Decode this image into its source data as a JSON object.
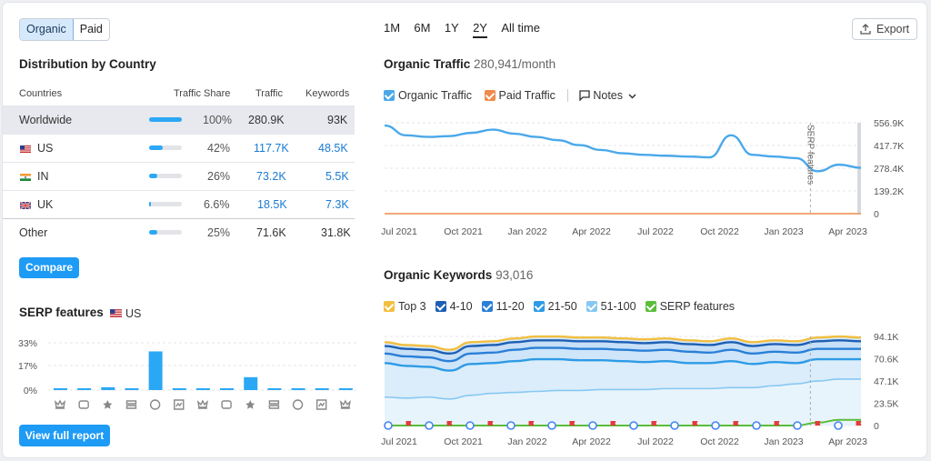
{
  "segment": {
    "organic": "Organic",
    "paid": "Paid"
  },
  "distribution": {
    "title": "Distribution by Country",
    "headers": {
      "countries": "Countries",
      "share": "Traffic Share",
      "traffic": "Traffic",
      "keywords": "Keywords"
    },
    "rows": [
      {
        "country": "Worldwide",
        "share": "100%",
        "share_value": 100,
        "traffic": "280.9K",
        "keywords": "93K"
      },
      {
        "country": "US",
        "share": "42%",
        "share_value": 42,
        "traffic": "117.7K",
        "keywords": "48.5K"
      },
      {
        "country": "IN",
        "share": "26%",
        "share_value": 26,
        "traffic": "73.2K",
        "keywords": "5.5K"
      },
      {
        "country": "UK",
        "share": "6.6%",
        "share_value": 6.6,
        "traffic": "18.5K",
        "keywords": "7.3K"
      },
      {
        "country": "Other",
        "share": "25%",
        "share_value": 25,
        "traffic": "71.6K",
        "keywords": "31.8K"
      }
    ],
    "compare_label": "Compare"
  },
  "serp": {
    "title": "SERP features",
    "country": "US",
    "y_ticks": [
      "33%",
      "17%",
      "0%"
    ],
    "view_report": "View full report",
    "icons": [
      "crown-icon",
      "link-icon",
      "star-icon",
      "layout-icon",
      "image-icon",
      "gallery-icon",
      "video-icon",
      "video-carousel-icon",
      "faq-icon",
      "location-icon",
      "graduation-icon",
      "news-icon",
      "twitter-icon"
    ]
  },
  "time_range": {
    "options": [
      "1M",
      "6M",
      "1Y",
      "2Y",
      "All time"
    ],
    "selected": "2Y"
  },
  "export_label": "Export",
  "traffic": {
    "title": "Organic Traffic",
    "value": "280,941/month",
    "legend": {
      "organic": "Organic Traffic",
      "paid": "Paid Traffic",
      "notes": "Notes"
    },
    "y_ticks": [
      "556.9K",
      "417.7K",
      "278.4K",
      "139.2K",
      "0"
    ],
    "x_ticks": [
      "Jul 2021",
      "Oct 2021",
      "Jan 2022",
      "Apr 2022",
      "Jul 2022",
      "Oct 2022",
      "Jan 2023",
      "Apr 2023"
    ],
    "serp_marker": "SERP features",
    "colors": {
      "organic": "#4aa8ea",
      "paid": "#f08a4b"
    }
  },
  "keywords": {
    "title": "Organic Keywords",
    "value": "93,016",
    "legend": [
      "Top 3",
      "4-10",
      "11-20",
      "21-50",
      "51-100",
      "SERP features"
    ],
    "legend_colors": [
      "#f2bf3f",
      "#1d5fb3",
      "#2a7fd6",
      "#2e9be6",
      "#86c8f2",
      "#5bbd3a"
    ],
    "y_ticks": [
      "94.1K",
      "70.6K",
      "47.1K",
      "23.5K",
      "0"
    ],
    "x_ticks": [
      "Jul 2021",
      "Oct 2021",
      "Jan 2022",
      "Apr 2022",
      "Jul 2022",
      "Oct 2022",
      "Jan 2023",
      "Apr 2023"
    ]
  },
  "chart_data": [
    {
      "type": "bar",
      "title": "SERP features",
      "categories": [
        "Featured snippet",
        "Sitelinks",
        "Reviews",
        "Top stories",
        "Image",
        "Image pack",
        "Video",
        "Video carousel",
        "People also ask",
        "Local pack",
        "Knowledge panel",
        "News",
        "Twitter"
      ],
      "values": [
        1,
        1,
        2,
        1,
        27,
        0,
        0,
        0,
        9,
        1,
        1,
        0,
        0
      ],
      "ylim": [
        0,
        33
      ]
    },
    {
      "type": "line",
      "title": "Organic Traffic",
      "x": [
        "Jul 2021",
        "Aug 2021",
        "Sep 2021",
        "Oct 2021",
        "Nov 2021",
        "Dec 2021",
        "Jan 2022",
        "Feb 2022",
        "Mar 2022",
        "Apr 2022",
        "May 2022",
        "Jun 2022",
        "Jul 2022",
        "Aug 2022",
        "Sep 2022",
        "Oct 2022",
        "Nov 2022",
        "Dec 2022",
        "Jan 2023",
        "Feb 2023",
        "Mar 2023",
        "Apr 2023",
        "May 2023"
      ],
      "series": [
        {
          "name": "Organic Traffic",
          "values": [
            540,
            480,
            470,
            475,
            495,
            515,
            490,
            470,
            450,
            420,
            390,
            370,
            360,
            355,
            350,
            345,
            480,
            360,
            350,
            340,
            260,
            300,
            281
          ]
        },
        {
          "name": "Paid Traffic",
          "values": [
            0,
            0,
            0,
            0,
            0,
            0,
            0,
            0,
            0,
            0,
            0,
            0,
            0,
            0,
            0,
            0,
            0,
            0,
            0,
            0,
            0,
            0,
            0
          ]
        }
      ],
      "ylabel": "",
      "ylim": [
        0,
        556.9
      ],
      "unit": "K"
    },
    {
      "type": "area",
      "title": "Organic Keywords",
      "x": [
        "Jul 2021",
        "Aug 2021",
        "Sep 2021",
        "Oct 2021",
        "Nov 2021",
        "Dec 2021",
        "Jan 2022",
        "Feb 2022",
        "Mar 2022",
        "Apr 2022",
        "May 2022",
        "Jun 2022",
        "Jul 2022",
        "Aug 2022",
        "Sep 2022",
        "Oct 2022",
        "Nov 2022",
        "Dec 2022",
        "Jan 2023",
        "Feb 2023",
        "Mar 2023",
        "Apr 2023",
        "May 2023"
      ],
      "series": [
        {
          "name": "Top 3",
          "values": [
            88,
            85,
            84,
            80,
            88,
            89,
            92,
            94,
            94,
            93,
            93,
            92,
            91,
            92,
            90,
            89,
            92,
            88,
            90,
            89,
            93,
            94,
            93
          ]
        },
        {
          "name": "4-10",
          "values": [
            84,
            81,
            80,
            76,
            84,
            85,
            88,
            90,
            90,
            89,
            89,
            88,
            87,
            88,
            86,
            85,
            88,
            84,
            86,
            85,
            89,
            90,
            89
          ]
        },
        {
          "name": "11-20",
          "values": [
            76,
            73,
            72,
            68,
            76,
            77,
            80,
            82,
            82,
            81,
            81,
            80,
            79,
            80,
            78,
            77,
            80,
            76,
            78,
            77,
            81,
            81,
            81
          ]
        },
        {
          "name": "21-50",
          "values": [
            66,
            63,
            62,
            58,
            65,
            66,
            68,
            70,
            70,
            69,
            69,
            68,
            67,
            68,
            66,
            66,
            68,
            65,
            67,
            66,
            70,
            70,
            70
          ]
        },
        {
          "name": "51-100",
          "values": [
            30,
            29,
            30,
            28,
            32,
            34,
            35,
            36,
            37,
            37,
            38,
            38,
            38,
            39,
            39,
            39,
            40,
            40,
            42,
            44,
            47,
            49,
            49
          ]
        },
        {
          "name": "SERP features",
          "values": [
            0,
            0,
            0,
            0,
            0,
            0,
            0,
            0,
            0,
            0,
            0,
            0,
            0,
            0,
            0,
            0,
            0,
            0,
            0,
            0,
            3,
            6,
            6
          ]
        }
      ],
      "ylim": [
        0,
        94.1
      ],
      "unit": "K"
    }
  ]
}
